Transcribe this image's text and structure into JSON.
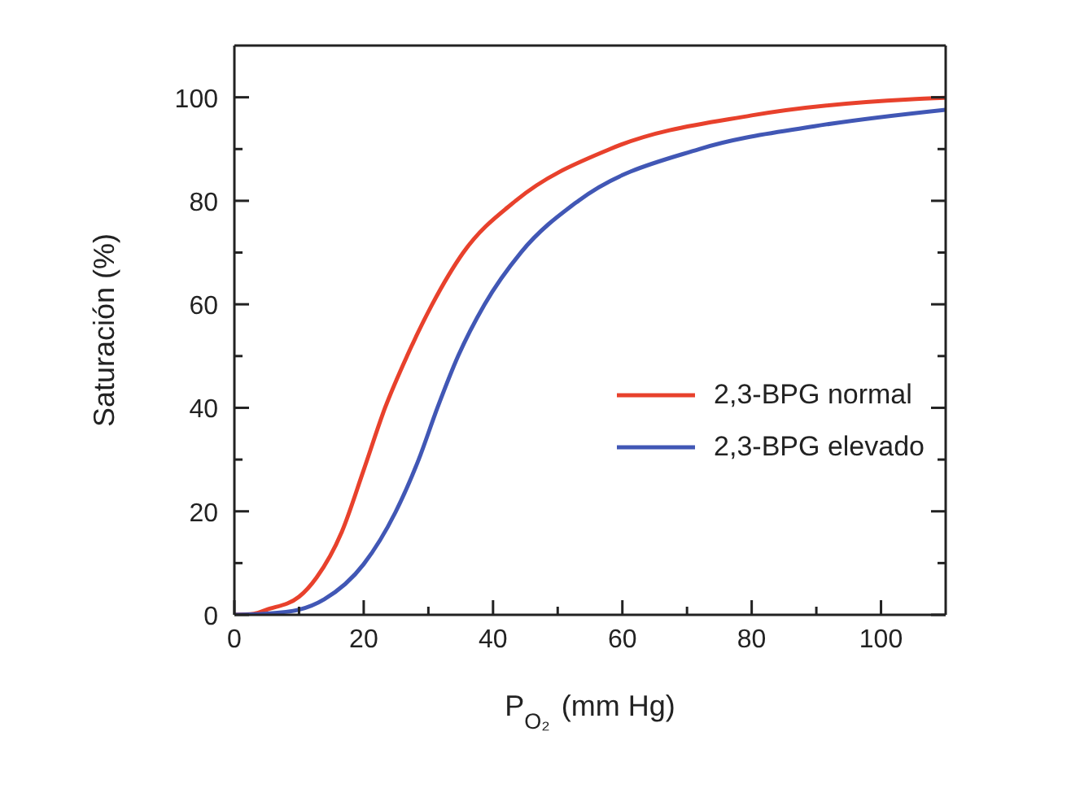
{
  "chart_data": {
    "type": "line",
    "xlabel": "P$_{O₂}$ (mm Hg)",
    "ylabel": "Saturación (%)",
    "xlim": [
      0,
      110
    ],
    "ylim": [
      0,
      110
    ],
    "xticks": [
      0,
      {
        "value": 10,
        "label": null
      },
      20,
      {
        "value": 30,
        "label": null
      },
      40,
      {
        "value": 50,
        "label": null
      },
      60,
      {
        "value": 70,
        "label": null
      },
      80,
      {
        "value": 90,
        "label": null
      },
      100
    ],
    "yticks": [
      0,
      {
        "value": 10,
        "label": null
      },
      20,
      {
        "value": 30,
        "label": null
      },
      40,
      {
        "value": 50,
        "label": null
      },
      60,
      {
        "value": 70,
        "label": null
      },
      80,
      {
        "value": 90,
        "label": null
      },
      100
    ],
    "legend": "bottom right",
    "grid": false,
    "marker": "none",
    "line_style": "solid",
    "series": [
      {
        "name": "2,3-BPG normal",
        "color": "#e8412c",
        "x": [
          0,
          3,
          5,
          10,
          12.7,
          16.6,
          20,
          23.3,
          26.7,
          30.6,
          35.4,
          43.5,
          58.1,
          80,
          104.3,
          110
        ],
        "values": [
          0,
          0.2,
          1,
          3.5,
          7.2,
          16,
          28,
          40,
          50,
          60,
          70,
          80,
          90,
          96.5,
          99.6,
          99.9
        ]
      },
      {
        "name": "2,3-BPG elevado",
        "color": "#4157b5",
        "x": [
          0,
          4.6,
          10,
          13.9,
          20,
          24.9,
          28.5,
          31.4,
          34.6,
          38.7,
          44.3,
          53.2,
          71.9,
          89.7,
          110
        ],
        "values": [
          0,
          0.2,
          1,
          3,
          9.8,
          19.8,
          30,
          40,
          50,
          60,
          70,
          80,
          90,
          94.4,
          97.6
        ]
      }
    ]
  }
}
